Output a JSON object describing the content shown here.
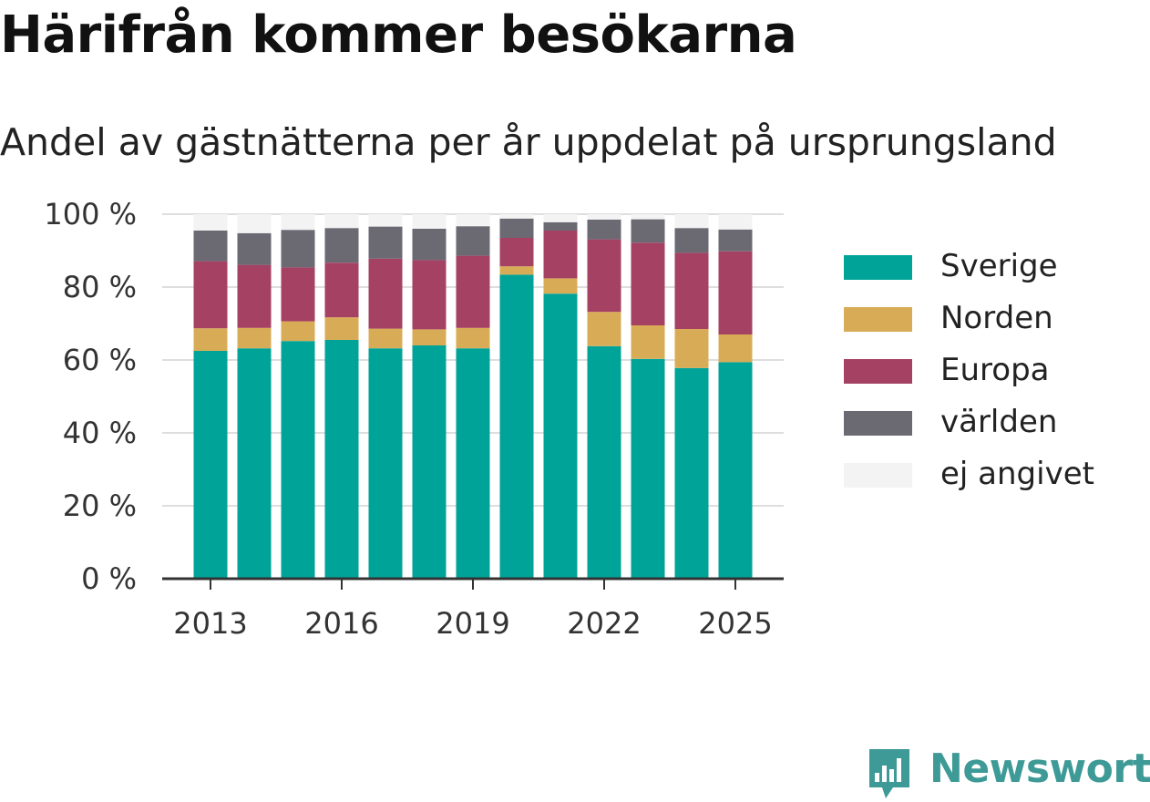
{
  "title": "Härifrån kommer besökarna",
  "subtitle": "Andel av gästnätterna per år uppdelat på ursprungsland",
  "brand": {
    "name": "Newsworthy",
    "icon": "newsworthy-logo-icon",
    "color": "#3e9a96"
  },
  "chart_data": {
    "type": "bar",
    "stacked": true,
    "categories": [
      "2013",
      "2014",
      "2015",
      "2016",
      "2017",
      "2018",
      "2019",
      "2020",
      "2021",
      "2022",
      "2023",
      "2024",
      "2025"
    ],
    "x_ticks": [
      "2013",
      "2016",
      "2019",
      "2022",
      "2025"
    ],
    "y_ticks": [
      "0 %",
      "20 %",
      "40 %",
      "60 %",
      "80 %",
      "100 %"
    ],
    "ylim": [
      0,
      100
    ],
    "grid": true,
    "legend_position": "right",
    "series": [
      {
        "name": "Sverige",
        "color": "#00a398",
        "values": [
          62.5,
          63.2,
          65.2,
          65.5,
          63.2,
          64.0,
          63.2,
          83.4,
          78.2,
          63.8,
          60.3,
          57.8,
          59.4
        ]
      },
      {
        "name": "Norden",
        "color": "#d8ac57",
        "values": [
          6.2,
          5.6,
          5.4,
          6.2,
          5.4,
          4.4,
          5.6,
          2.3,
          4.2,
          9.4,
          9.2,
          10.7,
          7.6
        ]
      },
      {
        "name": "Europa",
        "color": "#a54163",
        "values": [
          18.4,
          17.3,
          14.8,
          15.0,
          19.2,
          19.0,
          19.8,
          7.8,
          13.1,
          19.9,
          22.7,
          20.9,
          22.8
        ]
      },
      {
        "name": "världen",
        "color": "#6b6a73",
        "values": [
          8.4,
          8.7,
          10.3,
          9.5,
          8.8,
          8.6,
          8.1,
          5.3,
          2.3,
          5.4,
          6.4,
          6.8,
          6.0
        ]
      },
      {
        "name": "ej angivet",
        "color": "#f4f3f4",
        "values": [
          4.5,
          5.2,
          4.3,
          3.8,
          3.4,
          4.0,
          3.3,
          1.2,
          2.2,
          1.5,
          1.4,
          3.8,
          4.2
        ]
      }
    ]
  }
}
